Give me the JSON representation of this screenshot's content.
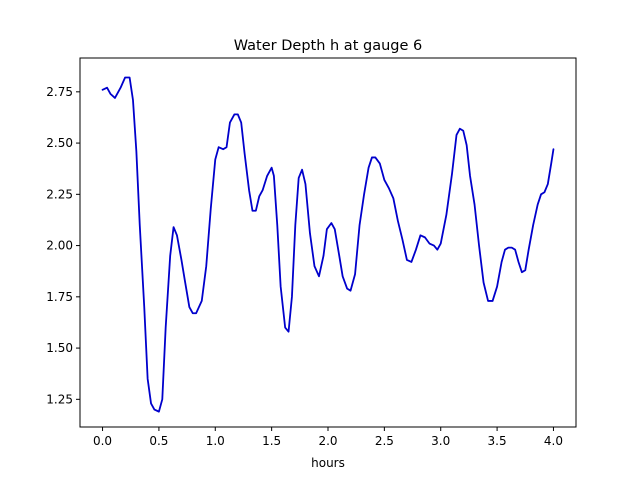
{
  "chart_data": {
    "type": "line",
    "title": "Water Depth h at gauge 6",
    "xlabel": "hours",
    "ylabel": "",
    "xlim": [
      -0.2,
      4.2
    ],
    "ylim": [
      1.115,
      2.915
    ],
    "xticks": [
      0.0,
      0.5,
      1.0,
      1.5,
      2.0,
      2.5,
      3.0,
      3.5,
      4.0
    ],
    "xtick_labels": [
      "0.0",
      "0.5",
      "1.0",
      "1.5",
      "2.0",
      "2.5",
      "3.0",
      "3.5",
      "4.0"
    ],
    "yticks": [
      1.25,
      1.5,
      1.75,
      2.0,
      2.25,
      2.5,
      2.75
    ],
    "ytick_labels": [
      "1.25",
      "1.50",
      "1.75",
      "2.00",
      "2.25",
      "2.50",
      "2.75"
    ],
    "grid": false,
    "line_color": "#0000cc",
    "series": [
      {
        "x": [
          0.0,
          0.04,
          0.07,
          0.11,
          0.16,
          0.2,
          0.24,
          0.27,
          0.3,
          0.33,
          0.37,
          0.4,
          0.43,
          0.46,
          0.5,
          0.53,
          0.56,
          0.6,
          0.63,
          0.66,
          0.7,
          0.73,
          0.77,
          0.8,
          0.83,
          0.88,
          0.92,
          0.96,
          1.0,
          1.03,
          1.07,
          1.1,
          1.13,
          1.17,
          1.2,
          1.23,
          1.26,
          1.3,
          1.33,
          1.36,
          1.39,
          1.42,
          1.46,
          1.5,
          1.52,
          1.55,
          1.58,
          1.62,
          1.65,
          1.68,
          1.71,
          1.74,
          1.77,
          1.8,
          1.84,
          1.88,
          1.92,
          1.96,
          1.99,
          2.03,
          2.06,
          2.1,
          2.13,
          2.17,
          2.2,
          2.24,
          2.28,
          2.32,
          2.36,
          2.39,
          2.42,
          2.46,
          2.5,
          2.54,
          2.58,
          2.62,
          2.66,
          2.7,
          2.74,
          2.78,
          2.82,
          2.86,
          2.9,
          2.94,
          2.97,
          3.0,
          3.05,
          3.1,
          3.14,
          3.17,
          3.2,
          3.23,
          3.26,
          3.3,
          3.34,
          3.38,
          3.42,
          3.46,
          3.5,
          3.54,
          3.57,
          3.6,
          3.63,
          3.66,
          3.69,
          3.72,
          3.75,
          3.78,
          3.82,
          3.86,
          3.89,
          3.92,
          3.95,
          3.98,
          4.0
        ],
        "y": [
          2.76,
          2.77,
          2.74,
          2.72,
          2.77,
          2.82,
          2.82,
          2.71,
          2.46,
          2.1,
          1.7,
          1.35,
          1.23,
          1.2,
          1.19,
          1.25,
          1.6,
          1.95,
          2.09,
          2.05,
          1.93,
          1.83,
          1.7,
          1.67,
          1.67,
          1.73,
          1.9,
          2.18,
          2.42,
          2.48,
          2.47,
          2.48,
          2.6,
          2.64,
          2.64,
          2.6,
          2.45,
          2.27,
          2.17,
          2.17,
          2.24,
          2.27,
          2.34,
          2.38,
          2.34,
          2.1,
          1.8,
          1.6,
          1.58,
          1.75,
          2.1,
          2.33,
          2.37,
          2.3,
          2.06,
          1.9,
          1.85,
          1.95,
          2.08,
          2.11,
          2.08,
          1.95,
          1.85,
          1.79,
          1.78,
          1.86,
          2.1,
          2.25,
          2.38,
          2.43,
          2.43,
          2.4,
          2.32,
          2.28,
          2.23,
          2.12,
          2.03,
          1.93,
          1.92,
          1.98,
          2.05,
          2.04,
          2.01,
          2.0,
          1.98,
          2.01,
          2.15,
          2.35,
          2.54,
          2.57,
          2.56,
          2.49,
          2.34,
          2.2,
          2.0,
          1.82,
          1.73,
          1.73,
          1.8,
          1.92,
          1.98,
          1.99,
          1.99,
          1.98,
          1.92,
          1.87,
          1.88,
          1.98,
          2.1,
          2.2,
          2.25,
          2.26,
          2.3,
          2.4,
          2.47
        ]
      }
    ]
  }
}
